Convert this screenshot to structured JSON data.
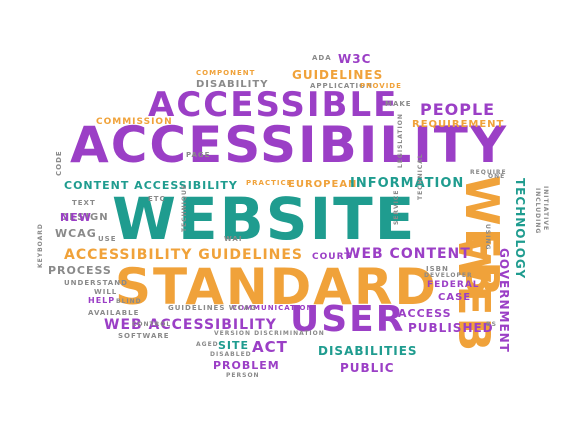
{
  "colors": {
    "purple": "#9b3fc6",
    "teal": "#1f9c8f",
    "orange": "#f0a23a",
    "gray": "#8a8a8a"
  },
  "words": [
    {
      "text": "ACCESSIBILITY",
      "color": "purple"
    },
    {
      "text": "WEBSITE",
      "color": "teal"
    },
    {
      "text": "STANDARD",
      "color": "orange"
    },
    {
      "text": "ACCESSIBLE",
      "color": "purple"
    },
    {
      "text": "USER",
      "color": "purple"
    },
    {
      "text": "WEB",
      "color": "orange"
    },
    {
      "text": "WEB",
      "color": "orange"
    },
    {
      "text": "ACCESSIBILITY GUIDELINES",
      "color": "orange"
    },
    {
      "text": "WEB ACCESSIBILITY",
      "color": "purple"
    },
    {
      "text": "CONTENT ACCESSIBILITY",
      "color": "teal"
    },
    {
      "text": "EUROPEAN",
      "color": "orange"
    },
    {
      "text": "INFORMATION",
      "color": "teal"
    },
    {
      "text": "WEB CONTENT",
      "color": "purple"
    },
    {
      "text": "PEOPLE",
      "color": "purple"
    },
    {
      "text": "REQUIREMENT",
      "color": "orange"
    },
    {
      "text": "GUIDELINES",
      "color": "orange"
    },
    {
      "text": "W3C",
      "color": "purple"
    },
    {
      "text": "DISABILITIES",
      "color": "teal"
    },
    {
      "text": "PUBLIC",
      "color": "purple"
    },
    {
      "text": "PUBLISHED",
      "color": "purple"
    },
    {
      "text": "ACT",
      "color": "purple"
    },
    {
      "text": "PROBLEM",
      "color": "purple"
    },
    {
      "text": "SITE",
      "color": "teal"
    },
    {
      "text": "ACCESS",
      "color": "purple"
    },
    {
      "text": "GOVERNMENT",
      "color": "purple"
    },
    {
      "text": "TECHNOLOGY",
      "color": "teal"
    },
    {
      "text": "PROCESS",
      "color": "gray"
    },
    {
      "text": "DESIGN",
      "color": "gray"
    },
    {
      "text": "WCAG",
      "color": "gray"
    },
    {
      "text": "NEW",
      "color": "purple"
    },
    {
      "text": "COMMISSION",
      "color": "orange"
    },
    {
      "text": "DISABILITY",
      "color": "gray"
    },
    {
      "text": "COMPONENT",
      "color": "orange"
    },
    {
      "text": "APPLICATION",
      "color": "gray"
    },
    {
      "text": "PROVIDE",
      "color": "orange"
    },
    {
      "text": "ADA",
      "color": "gray"
    },
    {
      "text": "MAKE",
      "color": "gray"
    },
    {
      "text": "COURT",
      "color": "purple"
    },
    {
      "text": "FEDERAL",
      "color": "purple"
    },
    {
      "text": "CASE",
      "color": "purple"
    },
    {
      "text": "ISBN",
      "color": "gray"
    },
    {
      "text": "PRACTICE",
      "color": "orange"
    },
    {
      "text": "COMMUNICATION",
      "color": "purple"
    },
    {
      "text": "GUIDELINES WCAG",
      "color": "gray"
    },
    {
      "text": "SOFTWARE",
      "color": "gray"
    },
    {
      "text": "VERSION DISCRIMINATION",
      "color": "gray"
    },
    {
      "text": "PERSON",
      "color": "gray"
    },
    {
      "text": "UNDERSTAND",
      "color": "gray"
    },
    {
      "text": "HELP",
      "color": "purple"
    },
    {
      "text": "AVAILABLE",
      "color": "gray"
    },
    {
      "text": "WILL",
      "color": "gray"
    },
    {
      "text": "USE",
      "color": "gray"
    },
    {
      "text": "TEXT",
      "color": "gray"
    },
    {
      "text": "PAGE",
      "color": "gray"
    },
    {
      "text": "CODE",
      "color": "gray"
    },
    {
      "text": "KEYBOARD",
      "color": "gray"
    },
    {
      "text": "LEGISLATION",
      "color": "gray"
    },
    {
      "text": "REQUIRE",
      "color": "gray"
    },
    {
      "text": "ONE",
      "color": "gray"
    },
    {
      "text": "INCLUDING",
      "color": "gray"
    },
    {
      "text": "INITIATIVE",
      "color": "gray"
    },
    {
      "text": "DEVELOPER",
      "color": "gray"
    },
    {
      "text": "BS",
      "color": "gray"
    },
    {
      "text": "BLIND",
      "color": "gray"
    },
    {
      "text": "CONTROL",
      "color": "gray"
    },
    {
      "text": "ETC",
      "color": "gray"
    },
    {
      "text": "WAI",
      "color": "gray"
    },
    {
      "text": "AGED",
      "color": "gray"
    },
    {
      "text": "DISABLED",
      "color": "gray"
    },
    {
      "text": "USING",
      "color": "gray"
    },
    {
      "text": "TECHNICAL",
      "color": "gray"
    },
    {
      "text": "SERVICE",
      "color": "gray"
    },
    {
      "text": "TECHNIQUE",
      "color": "gray"
    }
  ]
}
